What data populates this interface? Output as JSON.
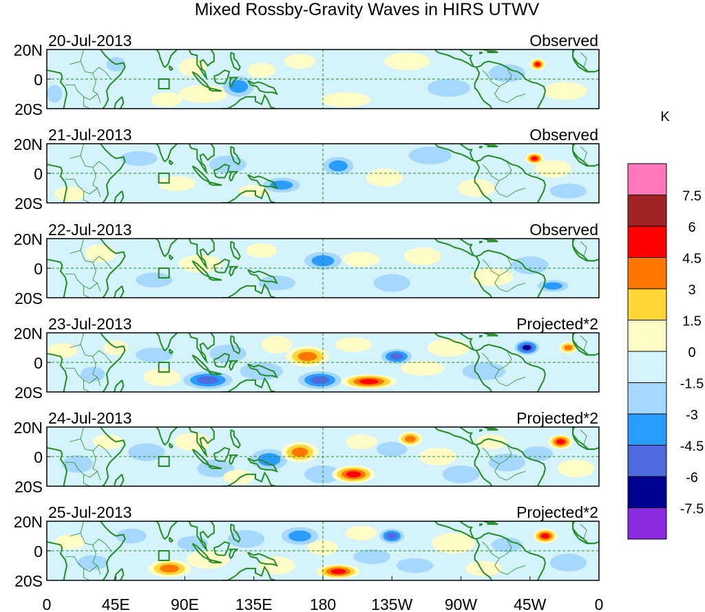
{
  "chart_data": {
    "type": "heatmap",
    "title": "Mixed Rossby-Gravity Waves in HIRS UTWV",
    "x_ticks": [
      "0",
      "45E",
      "90E",
      "135E",
      "180",
      "135W",
      "90W",
      "45W",
      "0"
    ],
    "y_ticks": [
      "20N",
      "0",
      "20S"
    ],
    "x_range_deg": [
      0,
      360
    ],
    "y_range_deg": [
      -20,
      20
    ],
    "colorbar": {
      "unit": "K",
      "levels": [
        "7.5",
        "6",
        "4.5",
        "3",
        "1.5",
        "0",
        "-1.5",
        "-3",
        "-4.5",
        "-6",
        "-7.5"
      ],
      "colors": [
        "#ff77bb",
        "#a02424",
        "#ff0000",
        "#ff7700",
        "#ffd633",
        "#fffcc8",
        "#d4f3fb",
        "#a6d8ff",
        "#2a9bff",
        "#4e6be0",
        "#000090",
        "#8a2be2"
      ]
    },
    "panels": [
      {
        "date": "20-Jul-2013",
        "label": "Observed",
        "blobs": [
          [
            5,
            -10,
            5,
            6,
            -1
          ],
          [
            45,
            10,
            6,
            5,
            -1
          ],
          [
            78,
            -14,
            10,
            5,
            1
          ],
          [
            95,
            8,
            9,
            6,
            1
          ],
          [
            102,
            -10,
            16,
            6,
            1
          ],
          [
            125,
            -5,
            10,
            7,
            -2
          ],
          [
            140,
            6,
            9,
            5,
            1
          ],
          [
            165,
            12,
            10,
            5,
            1
          ],
          [
            195,
            -14,
            16,
            5,
            1
          ],
          [
            235,
            12,
            15,
            6,
            1
          ],
          [
            262,
            -6,
            14,
            6,
            -1
          ],
          [
            320,
            10,
            5,
            4,
            4
          ],
          [
            338,
            -8,
            14,
            6,
            1
          ],
          [
            300,
            4,
            12,
            6,
            -1
          ]
        ]
      },
      {
        "date": "21-Jul-2013",
        "label": "Observed",
        "blobs": [
          [
            15,
            -14,
            10,
            5,
            1
          ],
          [
            60,
            10,
            12,
            5,
            -1
          ],
          [
            85,
            -7,
            12,
            5,
            1
          ],
          [
            118,
            6,
            12,
            6,
            -1
          ],
          [
            135,
            -12,
            10,
            4,
            1
          ],
          [
            153,
            -8,
            12,
            5,
            -2
          ],
          [
            190,
            5,
            10,
            6,
            -2
          ],
          [
            220,
            -3,
            12,
            6,
            1
          ],
          [
            250,
            12,
            14,
            6,
            -1
          ],
          [
            280,
            -10,
            12,
            6,
            1
          ],
          [
            318,
            10,
            6,
            4,
            4
          ],
          [
            330,
            3,
            12,
            6,
            1
          ],
          [
            340,
            -12,
            12,
            5,
            -1
          ]
        ]
      },
      {
        "date": "22-Jul-2013",
        "label": "Observed",
        "blobs": [
          [
            35,
            10,
            10,
            6,
            1
          ],
          [
            70,
            -8,
            12,
            5,
            -1
          ],
          [
            100,
            3,
            14,
            6,
            1
          ],
          [
            140,
            12,
            10,
            5,
            1
          ],
          [
            150,
            -10,
            12,
            5,
            -1
          ],
          [
            180,
            5,
            12,
            6,
            -2
          ],
          [
            205,
            6,
            12,
            5,
            1
          ],
          [
            225,
            -10,
            12,
            6,
            -1
          ],
          [
            245,
            8,
            12,
            6,
            1
          ],
          [
            290,
            -6,
            14,
            6,
            1
          ],
          [
            315,
            2,
            12,
            6,
            -1
          ],
          [
            330,
            -12,
            10,
            4,
            -2
          ]
        ]
      },
      {
        "date": "23-Jul-2013",
        "label": "Projected*2",
        "blobs": [
          [
            10,
            8,
            10,
            5,
            1
          ],
          [
            30,
            -8,
            8,
            5,
            -1
          ],
          [
            45,
            10,
            8,
            5,
            1
          ],
          [
            70,
            5,
            12,
            5,
            -1
          ],
          [
            75,
            -10,
            12,
            6,
            1
          ],
          [
            105,
            -12,
            16,
            6,
            -3
          ],
          [
            118,
            6,
            12,
            6,
            -1
          ],
          [
            140,
            -6,
            14,
            6,
            -1
          ],
          [
            150,
            12,
            10,
            6,
            1
          ],
          [
            170,
            4,
            14,
            7,
            3
          ],
          [
            178,
            -12,
            14,
            6,
            -3
          ],
          [
            200,
            12,
            12,
            5,
            1
          ],
          [
            210,
            -13,
            18,
            5,
            4
          ],
          [
            228,
            4,
            10,
            5,
            -3
          ],
          [
            245,
            -4,
            14,
            5,
            1
          ],
          [
            262,
            10,
            14,
            6,
            1
          ],
          [
            285,
            -6,
            14,
            6,
            -1
          ],
          [
            313,
            10,
            8,
            5,
            -4
          ],
          [
            340,
            10,
            6,
            4,
            3
          ]
        ]
      },
      {
        "date": "24-Jul-2013",
        "label": "Projected*2",
        "blobs": [
          [
            20,
            -5,
            10,
            6,
            -1
          ],
          [
            40,
            10,
            10,
            5,
            1
          ],
          [
            65,
            3,
            12,
            6,
            -1
          ],
          [
            95,
            10,
            12,
            6,
            1
          ],
          [
            110,
            -8,
            12,
            6,
            -1
          ],
          [
            125,
            -14,
            10,
            5,
            1
          ],
          [
            145,
            -2,
            12,
            7,
            -2
          ],
          [
            165,
            3,
            12,
            7,
            3
          ],
          [
            180,
            -12,
            12,
            6,
            -1
          ],
          [
            200,
            -12,
            14,
            6,
            4
          ],
          [
            205,
            10,
            10,
            5,
            1
          ],
          [
            225,
            5,
            10,
            5,
            -1
          ],
          [
            237,
            12,
            8,
            5,
            3
          ],
          [
            255,
            0,
            12,
            6,
            1
          ],
          [
            270,
            -12,
            12,
            6,
            -1
          ],
          [
            290,
            10,
            10,
            5,
            1
          ],
          [
            300,
            -4,
            12,
            6,
            -1
          ],
          [
            320,
            2,
            10,
            5,
            -1
          ],
          [
            335,
            10,
            8,
            5,
            4
          ],
          [
            345,
            -8,
            12,
            6,
            1
          ]
        ]
      },
      {
        "date": "25-Jul-2013",
        "label": "Projected*2",
        "blobs": [
          [
            15,
            6,
            10,
            5,
            1
          ],
          [
            30,
            -8,
            10,
            5,
            -1
          ],
          [
            55,
            10,
            10,
            5,
            -1
          ],
          [
            80,
            -12,
            14,
            6,
            3
          ],
          [
            95,
            5,
            10,
            5,
            -1
          ],
          [
            105,
            -6,
            14,
            6,
            1
          ],
          [
            130,
            8,
            12,
            6,
            -1
          ],
          [
            150,
            -10,
            12,
            6,
            1
          ],
          [
            165,
            10,
            12,
            6,
            -2
          ],
          [
            180,
            2,
            10,
            5,
            1
          ],
          [
            190,
            -14,
            14,
            5,
            4
          ],
          [
            205,
            12,
            10,
            5,
            1
          ],
          [
            212,
            -4,
            12,
            5,
            -1
          ],
          [
            225,
            10,
            8,
            5,
            -3
          ],
          [
            240,
            -10,
            12,
            5,
            -1
          ],
          [
            265,
            5,
            14,
            7,
            1
          ],
          [
            285,
            -12,
            12,
            5,
            1
          ],
          [
            300,
            4,
            10,
            5,
            -1
          ],
          [
            325,
            10,
            8,
            5,
            4
          ],
          [
            340,
            -8,
            12,
            6,
            -1
          ]
        ]
      }
    ]
  }
}
